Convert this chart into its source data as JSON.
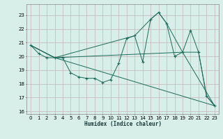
{
  "xlabel": "Humidex (Indice chaleur)",
  "ylabel": "",
  "bg_color": "#d8eee8",
  "grid_color": "#c8bebe",
  "line_color": "#1a6b5a",
  "xlim": [
    -0.5,
    23.5
  ],
  "ylim": [
    15.8,
    23.8
  ],
  "yticks": [
    16,
    17,
    18,
    19,
    20,
    21,
    22,
    23
  ],
  "xticks": [
    0,
    1,
    2,
    3,
    4,
    5,
    6,
    7,
    8,
    9,
    10,
    11,
    12,
    13,
    14,
    15,
    16,
    17,
    18,
    19,
    20,
    21,
    22,
    23
  ],
  "line1_x": [
    0,
    1,
    2,
    3,
    4,
    5,
    6,
    7,
    8,
    9,
    10,
    11,
    12,
    13,
    14,
    15,
    16,
    17,
    18,
    19,
    20,
    21,
    22,
    23
  ],
  "line1_y": [
    20.8,
    20.2,
    19.9,
    19.9,
    19.9,
    18.8,
    18.5,
    18.4,
    18.4,
    18.1,
    18.3,
    19.5,
    21.3,
    21.5,
    19.6,
    22.7,
    23.2,
    22.4,
    20.0,
    20.3,
    21.9,
    20.3,
    17.1,
    16.4
  ],
  "line2_x": [
    0,
    3,
    23
  ],
  "line2_y": [
    20.8,
    19.9,
    16.4
  ],
  "line3_x": [
    0,
    3,
    19,
    23
  ],
  "line3_y": [
    20.8,
    19.9,
    20.3,
    16.4
  ],
  "line4_x": [
    0,
    3,
    13,
    15,
    16,
    17,
    19,
    21,
    22,
    23
  ],
  "line4_y": [
    20.8,
    19.9,
    21.5,
    22.7,
    23.2,
    22.4,
    20.3,
    20.3,
    17.1,
    16.4
  ]
}
